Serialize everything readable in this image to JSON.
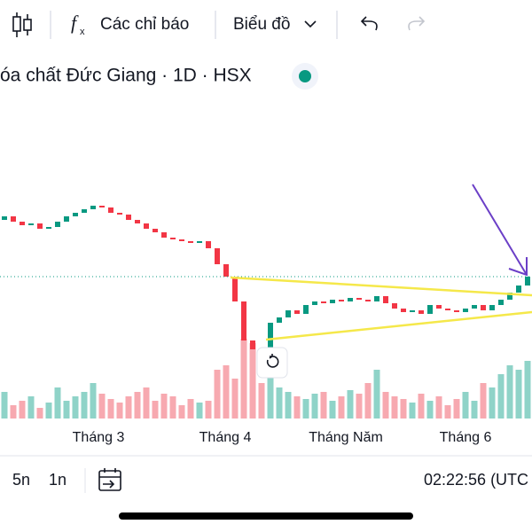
{
  "toolbar": {
    "indicators": "Các chỉ báo",
    "chart_type": "Biểu đồ"
  },
  "chart": {
    "title": "óa chất Đức Giang · 1D · HSX",
    "months": [
      "Tháng 3",
      "Tháng 4",
      "Tháng Năm",
      "Tháng 6"
    ],
    "ylim": [
      25,
      155
    ],
    "vlim": [
      0,
      100
    ],
    "up_color": "#089981",
    "down_color": "#f23645",
    "vol_up_color": "#8fd3c8",
    "vol_down_color": "#f7a9b0",
    "open": [
      126,
      128,
      125,
      123,
      124,
      121,
      122,
      125,
      128,
      130,
      132,
      134,
      133,
      130,
      129,
      126,
      124,
      121,
      119,
      116,
      115,
      114,
      113,
      114,
      110,
      101,
      94,
      80,
      58,
      53,
      45,
      68,
      71,
      75,
      73,
      78,
      80,
      79,
      81,
      80,
      82,
      81,
      80,
      83,
      79,
      76,
      74,
      75,
      73,
      78,
      76,
      75,
      74,
      76,
      78,
      75,
      78,
      81,
      85,
      89
    ],
    "close": [
      128,
      125,
      123,
      124,
      121,
      122,
      125,
      128,
      130,
      132,
      134,
      133,
      130,
      129,
      126,
      124,
      121,
      119,
      116,
      115,
      114,
      113,
      114,
      110,
      101,
      94,
      80,
      58,
      53,
      45,
      68,
      71,
      75,
      73,
      78,
      80,
      79,
      81,
      80,
      82,
      81,
      80,
      83,
      79,
      76,
      74,
      75,
      73,
      78,
      76,
      75,
      74,
      76,
      78,
      75,
      78,
      81,
      85,
      89,
      94
    ],
    "volume": [
      30,
      15,
      20,
      25,
      12,
      18,
      35,
      20,
      25,
      30,
      40,
      28,
      22,
      18,
      25,
      30,
      35,
      20,
      28,
      25,
      15,
      22,
      18,
      20,
      55,
      60,
      45,
      90,
      85,
      40,
      65,
      35,
      30,
      25,
      22,
      28,
      30,
      20,
      25,
      32,
      28,
      40,
      55,
      30,
      25,
      22,
      18,
      28,
      20,
      25,
      15,
      22,
      30,
      20,
      40,
      35,
      50,
      60,
      55,
      65
    ]
  },
  "bottom_bar": {
    "ranges": [
      "5n",
      "1n"
    ],
    "clock": "02:22:56 (UTC"
  }
}
